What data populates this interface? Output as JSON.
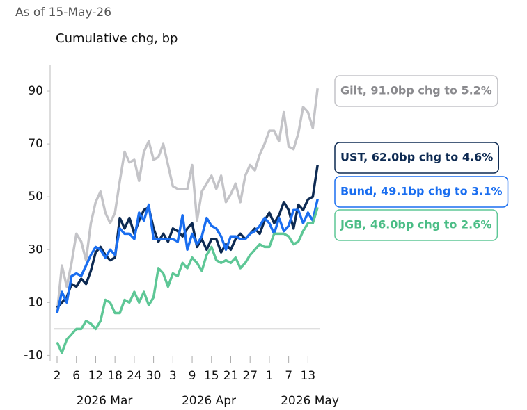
{
  "chart_data": {
    "type": "line",
    "subtitle": "As of 15-May-26",
    "y_label": "Cumulative chg, bp",
    "categories": [
      "2",
      null,
      null,
      null,
      "6",
      null,
      null,
      null,
      "12",
      null,
      null,
      null,
      "18",
      null,
      null,
      null,
      "24",
      null,
      null,
      null,
      "30",
      null,
      null,
      null,
      "3",
      null,
      null,
      null,
      "9",
      null,
      null,
      null,
      "15",
      null,
      null,
      null,
      "21",
      null,
      null,
      null,
      "27",
      null,
      null,
      null,
      "1",
      null,
      null,
      null,
      "7",
      null,
      null,
      null,
      "13",
      null,
      null
    ],
    "month_labels": [
      "2026 Mar",
      "2026 Apr",
      "2026 May"
    ],
    "ylim": [
      -12,
      100
    ],
    "yticks": [
      -10,
      10,
      30,
      50,
      70,
      90
    ],
    "series": [
      {
        "name": "Gilt",
        "color": "#c4c4c8",
        "text_color": "#8a8a8e",
        "callout": "Gilt, 91.0bp chg to 5.2%",
        "values": [
          6,
          24,
          16,
          25,
          36,
          33,
          26,
          40,
          48,
          52,
          44,
          40,
          44,
          56,
          67,
          63,
          64,
          56,
          67,
          71,
          64,
          65,
          70,
          62,
          54,
          53,
          53,
          53,
          62,
          41,
          52,
          55,
          58,
          53,
          58,
          48,
          51,
          55,
          48,
          58,
          62,
          60,
          66,
          70,
          75,
          75,
          71,
          82,
          69,
          68,
          74,
          84,
          82,
          76,
          91
        ]
      },
      {
        "name": "UST",
        "color": "#0d2a52",
        "text_color": "#0d2a52",
        "callout": "UST, 62.0bp chg to 4.6%",
        "values": [
          8,
          10,
          12,
          17,
          16,
          19,
          17,
          22,
          29,
          31,
          28,
          26,
          27,
          42,
          38,
          42,
          36,
          41,
          45,
          46,
          38,
          33,
          36,
          33,
          38,
          37,
          35,
          38,
          40,
          31,
          34,
          30,
          34,
          34,
          29,
          32,
          30,
          34,
          36,
          34,
          36,
          38,
          36,
          41,
          44,
          40,
          43,
          48,
          45,
          38,
          47,
          45,
          49,
          50,
          62
        ]
      },
      {
        "name": "Bund",
        "color": "#1a6ef0",
        "text_color": "#1a6ef0",
        "callout": "Bund, 49.1bp chg to 3.1%",
        "values": [
          6,
          14,
          10,
          20,
          21,
          20,
          24,
          28,
          31,
          30,
          27,
          30,
          28,
          38,
          36,
          36,
          34,
          44,
          41,
          47,
          34,
          34,
          34,
          34,
          34,
          33,
          43,
          30,
          36,
          32,
          35,
          42,
          39,
          38,
          35,
          30,
          35,
          35,
          34,
          34,
          36,
          37,
          39,
          42,
          40,
          36,
          42,
          37,
          39,
          45,
          45,
          40,
          44,
          41,
          49.1
        ]
      },
      {
        "name": "JGB",
        "color": "#5ec796",
        "text_color": "#4bbd86",
        "callout": "JGB, 46.0bp chg to 2.6%",
        "values": [
          -5,
          -9,
          -4,
          -2,
          0,
          0,
          3,
          2,
          0,
          3,
          11,
          10,
          6,
          6,
          11,
          10,
          14,
          10,
          14,
          9,
          12,
          23,
          21,
          16,
          21,
          20,
          25,
          23,
          27,
          25,
          22,
          28,
          31,
          26,
          25,
          26,
          25,
          27,
          23,
          25,
          28,
          30,
          32,
          31,
          31,
          36,
          36,
          36,
          35,
          32,
          33,
          37,
          40,
          40,
          46
        ]
      }
    ]
  }
}
